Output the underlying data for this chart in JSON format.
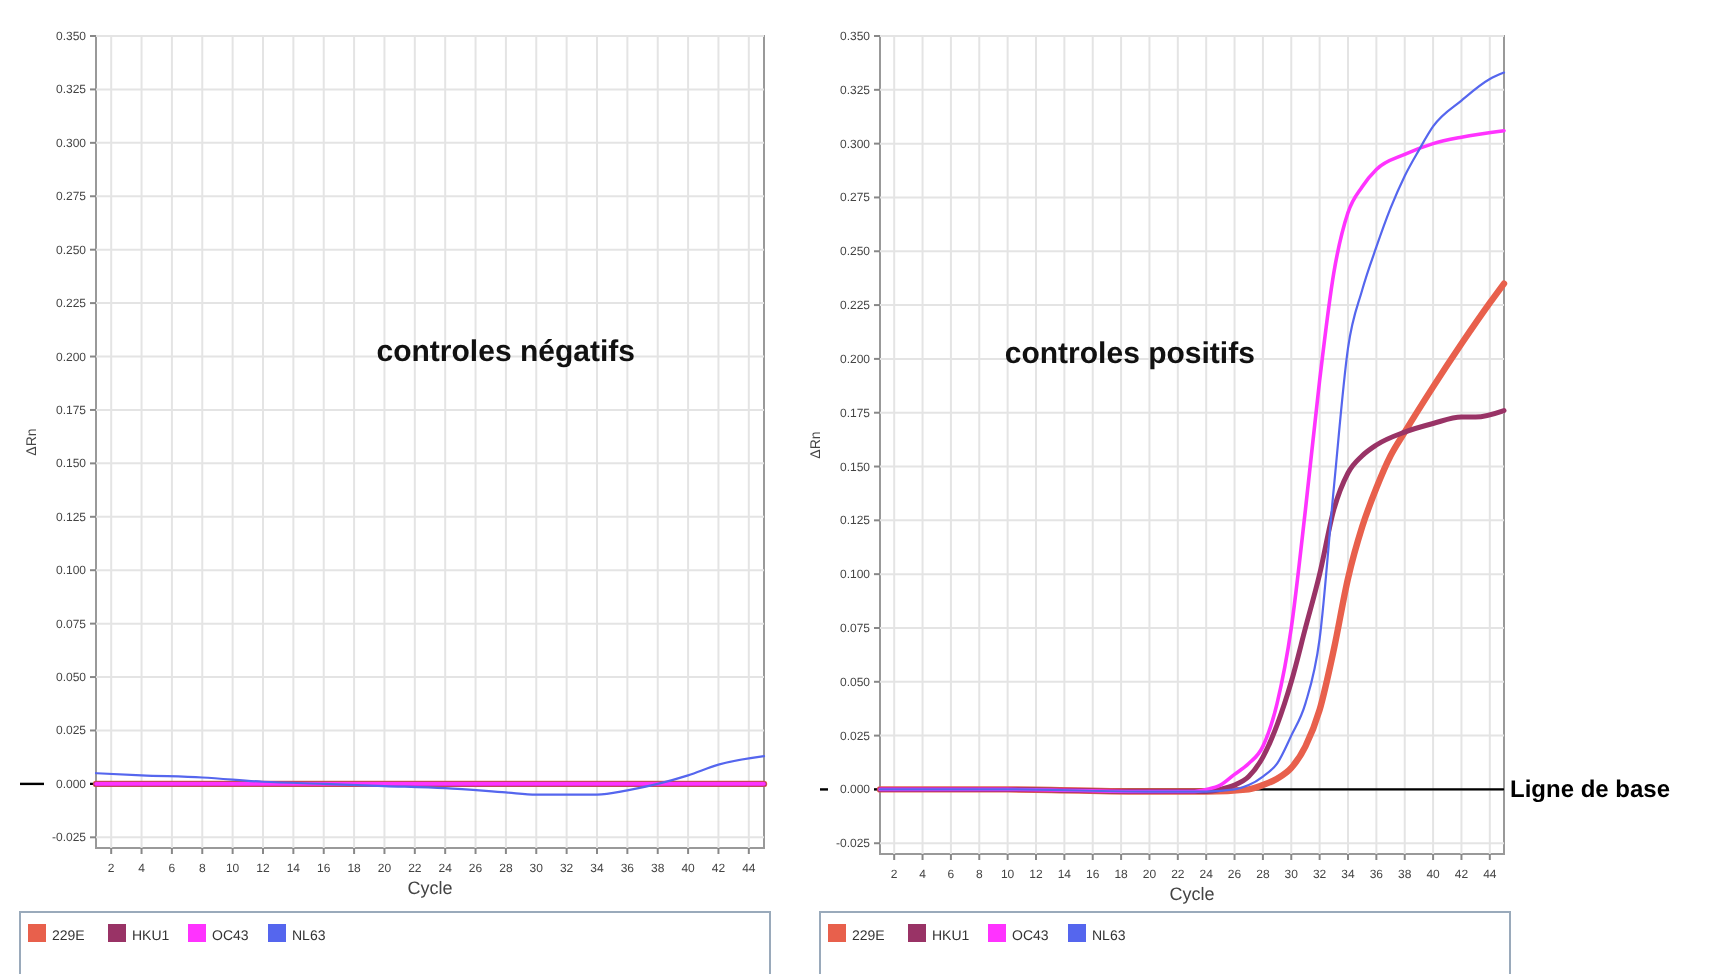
{
  "chart_data": [
    {
      "type": "line",
      "xlabel": "Cycle",
      "ylabel": "ΔRn",
      "annotations": [
        "controles négatifs"
      ],
      "xlim": [
        1,
        45
      ],
      "xticks": [
        2,
        4,
        6,
        8,
        10,
        12,
        14,
        16,
        18,
        20,
        22,
        24,
        26,
        28,
        30,
        32,
        34,
        36,
        38,
        40,
        42,
        44
      ],
      "ylim": [
        -0.03,
        0.35
      ],
      "yticks": [
        {
          "value": -0.025,
          "label": "-0.025"
        },
        {
          "value": 0,
          "label": "0.000"
        },
        {
          "value": 0.025,
          "label": "0.025"
        },
        {
          "value": 0.05,
          "label": "0.050"
        },
        {
          "value": 0.075,
          "label": "0.075"
        },
        {
          "value": 0.1,
          "label": "0.100"
        },
        {
          "value": 0.125,
          "label": "0.125"
        },
        {
          "value": 0.15,
          "label": "0.150"
        },
        {
          "value": 0.175,
          "label": "0.175"
        },
        {
          "value": 0.2,
          "label": "0.200"
        },
        {
          "value": 0.225,
          "label": "0.225"
        },
        {
          "value": 0.25,
          "label": "0.250"
        },
        {
          "value": 0.275,
          "label": "0.275"
        },
        {
          "value": 0.3,
          "label": "0.300"
        },
        {
          "value": 0.325,
          "label": "0.325"
        },
        {
          "value": 0.35,
          "label": "0.350"
        }
      ],
      "grid": true,
      "legend": "bottom",
      "ref_lines": [
        {
          "axis": "y",
          "value": 0,
          "color": "#000000"
        }
      ],
      "x": [
        1,
        45
      ],
      "series": [
        {
          "name": "229E",
          "color": "#e8604c",
          "values": [
            0,
            0
          ]
        },
        {
          "name": "HKU1",
          "color": "#993366",
          "values": [
            0,
            0
          ]
        },
        {
          "name": "OC43",
          "color": "#ff33ff",
          "values": [
            0,
            0
          ]
        },
        {
          "name": "NL63",
          "color": "#5566ee",
          "x": [
            1,
            4,
            8,
            12,
            16,
            20,
            24,
            28,
            30,
            32,
            34,
            36,
            38,
            40,
            42,
            45
          ],
          "values": [
            0.005,
            0.004,
            0.003,
            0.001,
            0,
            -0.001,
            -0.002,
            -0.004,
            -0.005,
            -0.005,
            -0.005,
            -0.003,
            0,
            0.004,
            0.009,
            0.013
          ]
        }
      ]
    },
    {
      "type": "line",
      "xlabel": "Cycle",
      "ylabel": "ΔRn",
      "annotations": [
        "controles positifs"
      ],
      "xlim": [
        1,
        45
      ],
      "xticks": [
        2,
        4,
        6,
        8,
        10,
        12,
        14,
        16,
        18,
        20,
        22,
        24,
        26,
        28,
        30,
        32,
        34,
        36,
        38,
        40,
        42,
        44
      ],
      "ylim": [
        -0.03,
        0.35
      ],
      "yticks": [
        {
          "value": -0.025,
          "label": "-0.025"
        },
        {
          "value": 0,
          "label": "0.000"
        },
        {
          "value": 0.025,
          "label": "0.025"
        },
        {
          "value": 0.05,
          "label": "0.050"
        },
        {
          "value": 0.075,
          "label": "0.075"
        },
        {
          "value": 0.1,
          "label": "0.100"
        },
        {
          "value": 0.125,
          "label": "0.125"
        },
        {
          "value": 0.15,
          "label": "0.150"
        },
        {
          "value": 0.175,
          "label": "0.175"
        },
        {
          "value": 0.2,
          "label": "0.200"
        },
        {
          "value": 0.225,
          "label": "0.225"
        },
        {
          "value": 0.25,
          "label": "0.250"
        },
        {
          "value": 0.275,
          "label": "0.275"
        },
        {
          "value": 0.3,
          "label": "0.300"
        },
        {
          "value": 0.325,
          "label": "0.325"
        },
        {
          "value": 0.35,
          "label": "0.350"
        }
      ],
      "grid": true,
      "legend": "bottom",
      "ref_lines": [
        {
          "axis": "y",
          "value": 0,
          "label": "Ligne de base",
          "color": "#000000"
        }
      ],
      "series": [
        {
          "name": "229E",
          "color": "#e8604c",
          "x": [
            1,
            10,
            20,
            24,
            27,
            28,
            29,
            30,
            31,
            32,
            33,
            34,
            35,
            36,
            37,
            38,
            40,
            42,
            44,
            45
          ],
          "values": [
            0,
            0,
            -0.001,
            -0.001,
            0,
            0.002,
            0.005,
            0.01,
            0.02,
            0.037,
            0.065,
            0.098,
            0.122,
            0.14,
            0.155,
            0.166,
            0.187,
            0.207,
            0.226,
            0.235
          ]
        },
        {
          "name": "HKU1",
          "color": "#993366",
          "x": [
            1,
            10,
            20,
            24,
            25,
            26,
            27,
            28,
            29,
            30,
            31,
            32,
            33,
            34,
            35,
            36,
            38,
            40,
            42,
            43,
            45
          ],
          "values": [
            0,
            0,
            -0.001,
            -0.001,
            0,
            0.002,
            0.006,
            0.015,
            0.03,
            0.05,
            0.075,
            0.1,
            0.13,
            0.147,
            0.155,
            0.16,
            0.166,
            0.17,
            0.173,
            0.173,
            0.176
          ]
        },
        {
          "name": "OC43",
          "color": "#ff33ff",
          "x": [
            1,
            10,
            20,
            23,
            24,
            25,
            26,
            27,
            28,
            29,
            30,
            31,
            32,
            33,
            34,
            35,
            36,
            38,
            40,
            42,
            45
          ],
          "values": [
            0,
            0,
            -0.001,
            -0.001,
            0,
            0.002,
            0.007,
            0.012,
            0.02,
            0.04,
            0.075,
            0.13,
            0.19,
            0.24,
            0.268,
            0.28,
            0.288,
            0.295,
            0.3,
            0.303,
            0.306
          ]
        },
        {
          "name": "NL63",
          "color": "#5566ee",
          "x": [
            1,
            10,
            20,
            24,
            26,
            27,
            28,
            29,
            30,
            31,
            32,
            33,
            34,
            35,
            36,
            37,
            38,
            39,
            40,
            42,
            44,
            45
          ],
          "values": [
            0,
            0,
            -0.001,
            -0.001,
            0,
            0.002,
            0.006,
            0.012,
            0.025,
            0.04,
            0.07,
            0.14,
            0.205,
            0.232,
            0.252,
            0.27,
            0.285,
            0.297,
            0.308,
            0.32,
            0.33,
            0.333
          ]
        }
      ]
    }
  ]
}
